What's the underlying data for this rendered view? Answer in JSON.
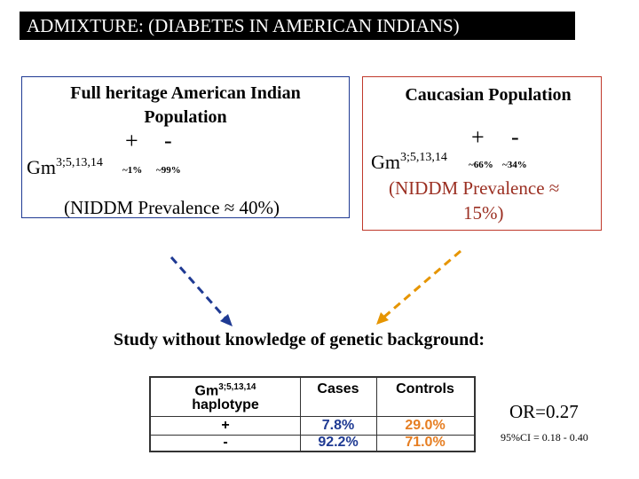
{
  "title": "ADMIXTURE: (DIABETES IN AMERICAN INDIANS)",
  "left_panel": {
    "heading_line1": "Full heritage American Indian",
    "heading_line2": "Population",
    "plus": "+",
    "minus": "-",
    "gm_base": "Gm",
    "gm_sup": "3;5,13,14",
    "pct_plus": "~1%",
    "pct_minus": "~99%",
    "prevalence": "(NIDDM Prevalence ≈ 40%)",
    "border_color": "#1f3a93"
  },
  "right_panel": {
    "heading": "Caucasian Population",
    "plus": "+",
    "minus": "-",
    "gm_base": "Gm",
    "gm_sup": "3;5,13,14",
    "pct_plus": "~66%",
    "pct_minus": "~34%",
    "prevalence_line1": "(NIDDM Prevalence ≈",
    "prevalence_line2": "15%)",
    "border_color": "#c0392b"
  },
  "arrows": {
    "left_color": "#1f3a93",
    "right_color": "#e69500"
  },
  "study_line": "Study without knowledge of genetic background:",
  "table": {
    "header_gm_base": "Gm",
    "header_gm_sup": "3;5,13,14",
    "header_haplotype": "haplotype",
    "header_cases": "Cases",
    "header_controls": "Controls",
    "row_plus": "+",
    "row_minus": "-",
    "cases_plus": "7.8%",
    "cases_minus": "92.2%",
    "controls_plus": "29.0%",
    "controls_minus": "71.0%",
    "cases_color": "#1f3a93",
    "controls_color": "#e67e22"
  },
  "odds_ratio": "OR=0.27",
  "confidence_interval": "95%CI = 0.18 - 0.40"
}
